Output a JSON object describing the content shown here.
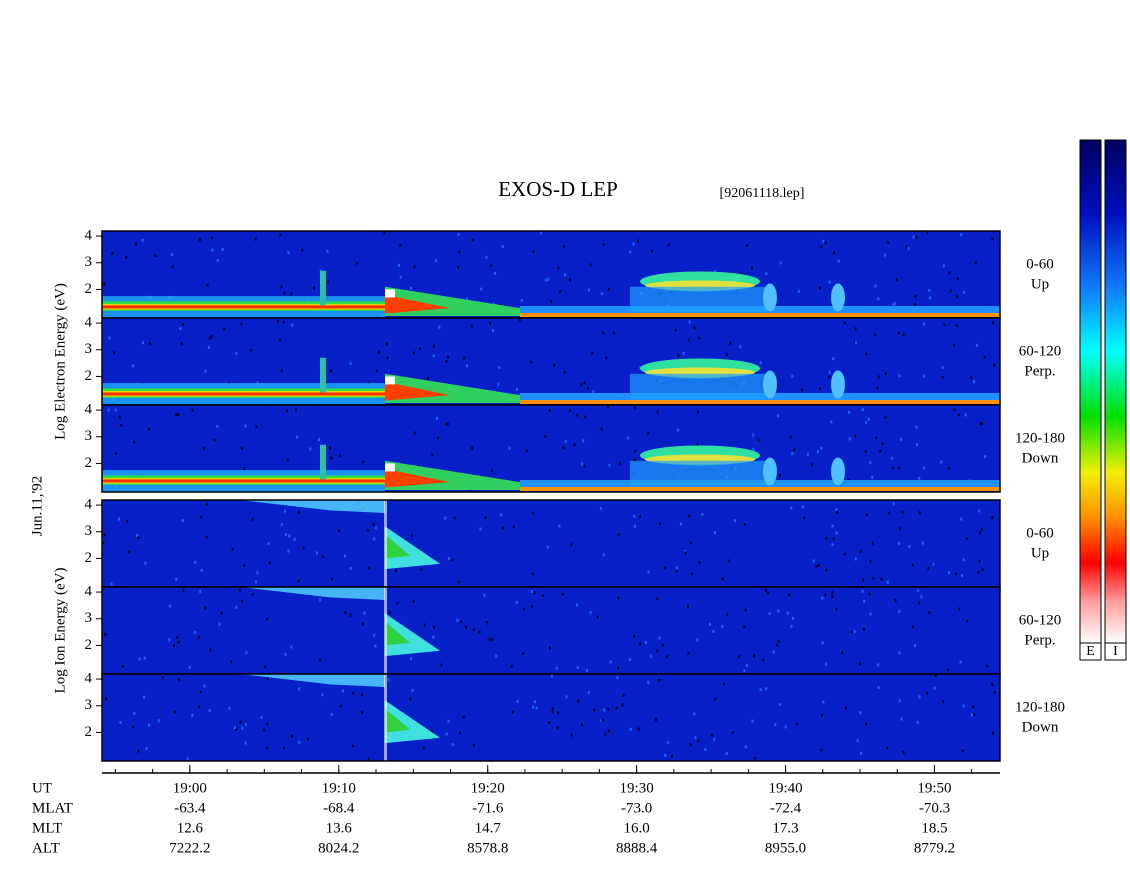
{
  "chart_data": {
    "type": "spectrogram",
    "title": "EXOS-D LEP",
    "file_label": "[92061118.lep]",
    "date_label": "Jun.11,'92",
    "xlim": [
      1134.1,
      1194.4
    ],
    "xticks": [
      {
        "value": 1140,
        "label": "19:00"
      },
      {
        "value": 1150,
        "label": "19:10"
      },
      {
        "value": 1160,
        "label": "19:20"
      },
      {
        "value": 1170,
        "label": "19:30"
      },
      {
        "value": 1180,
        "label": "19:40"
      },
      {
        "value": 1190,
        "label": "19:50"
      }
    ],
    "ylim": [
      0.93,
      4.19
    ],
    "yticks": [
      2,
      3,
      4
    ],
    "groups": [
      {
        "ylabel": "Log Electron Energy (eV)",
        "panels": [
          {
            "angle": "0-60",
            "direction": "Up"
          },
          {
            "angle": "60-120",
            "direction": "Perp."
          },
          {
            "angle": "120-180",
            "direction": "Down"
          }
        ]
      },
      {
        "ylabel": "Log Ion Energy (eV)",
        "panels": [
          {
            "angle": "0-60",
            "direction": "Up"
          },
          {
            "angle": "60-120",
            "direction": "Perp."
          },
          {
            "angle": "120-180",
            "direction": "Down"
          }
        ]
      }
    ],
    "x_row_label": "UT",
    "ephemeris": [
      {
        "name": "MLAT",
        "labels": [
          "-63.4",
          "-68.4",
          "-71.6",
          "-73.0",
          "-72.4",
          "-70.3"
        ]
      },
      {
        "name": "MLT",
        "labels": [
          "12.6",
          "13.6",
          "14.7",
          "16.0",
          "17.3",
          "18.5"
        ]
      },
      {
        "name": "ALT",
        "labels": [
          "7222.2",
          "8024.2",
          "8578.8",
          "8888.4",
          "8955.0",
          "8779.2"
        ]
      }
    ],
    "colorbars": [
      "E",
      "I"
    ]
  }
}
